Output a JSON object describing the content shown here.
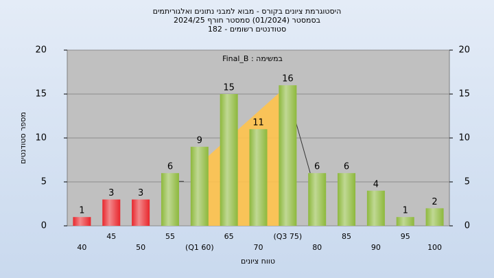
{
  "chart_data": {
    "type": "bar",
    "title": [
      "היסטוגרמת ציונים בקורס - מבוא למבני נתונים ואלגוריתמים",
      "בסמסטר  (01/2024)  סמסטר חורף 2024/25",
      "182 - סטודנטים רשומים"
    ],
    "annotation": "Final_B : במשימה",
    "ylabel": "מספר סטודנטים",
    "xlabel": "טווח ציונים",
    "categories": [
      "40",
      "45",
      "50",
      "55",
      "(Q1 60)",
      "65",
      "70",
      "(Q3 75)",
      "80",
      "85",
      "90",
      "95",
      "100"
    ],
    "values": [
      1,
      3,
      3,
      6,
      9,
      15,
      11,
      16,
      6,
      6,
      4,
      1,
      2
    ],
    "colors": [
      "#e8262c",
      "#e8262c",
      "#e8262c",
      "#8db83c",
      "#8db83c",
      "#8db83c",
      "#8db83c",
      "#8db83c",
      "#8db83c",
      "#8db83c",
      "#8db83c",
      "#8db83c",
      "#8db83c"
    ],
    "ylim": [
      0,
      20
    ],
    "yticks": [
      0,
      5,
      10,
      15,
      20
    ],
    "y2lim": [
      0,
      20
    ],
    "y2ticks": [
      0,
      5,
      10,
      15,
      20
    ],
    "grid": true
  }
}
